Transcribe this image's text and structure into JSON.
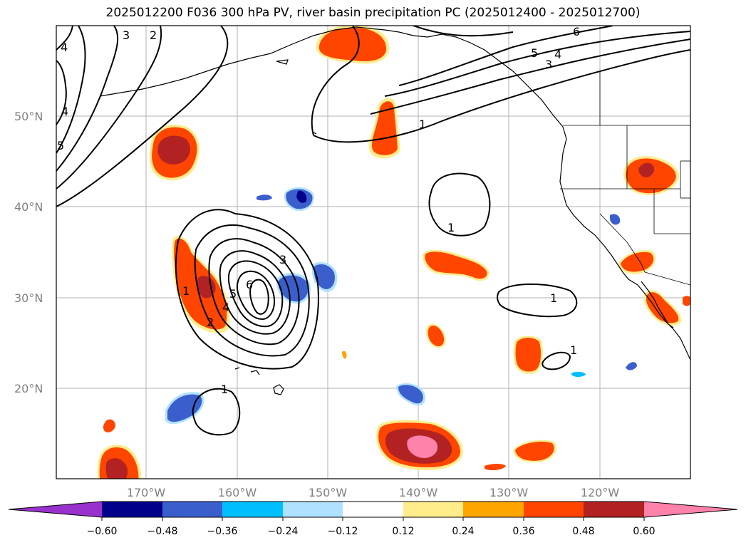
{
  "title": "2025012200 F036 300 hPa PV, river basin precipitation PC (2025012400 - 2025012700)",
  "lat_labels": [
    "50°N",
    "40°N",
    "30°N",
    "20°N"
  ],
  "lon_labels": [
    "170°W",
    "160°W",
    "150°W",
    "140°W",
    "130°W",
    "120°W"
  ],
  "contour_labels": [
    "1",
    "2",
    "3",
    "4",
    "5",
    "6"
  ],
  "colorbar": {
    "tick_labels": [
      "−0.60",
      "−0.48",
      "−0.36",
      "−0.24",
      "−0.12",
      "0.12",
      "0.24",
      "0.36",
      "0.48",
      "0.60"
    ],
    "colors": [
      "#9932cc",
      "#00008b",
      "#3a5fcd",
      "#00bfff",
      "#b0e2ff",
      "#ffffff",
      "#ffec8b",
      "#ffa500",
      "#ff4500",
      "#b22222",
      "#ff82ab"
    ]
  },
  "colors": {
    "grid": "#b0b0b0",
    "contour": "#000000",
    "coast": "#000000"
  }
}
